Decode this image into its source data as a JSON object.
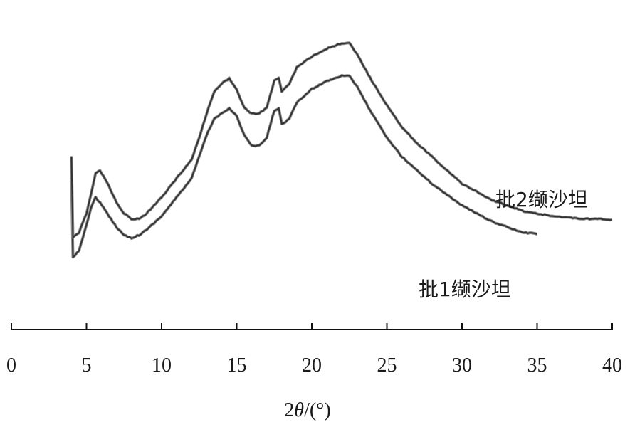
{
  "chart_data": {
    "type": "line",
    "title": "",
    "xlabel_parts": {
      "prefix": "2",
      "symbol": "θ",
      "suffix": "/(°)"
    },
    "ylabel": "",
    "xlim": [
      0,
      40
    ],
    "xticks": [
      0,
      5,
      10,
      15,
      20,
      25,
      30,
      35,
      40
    ],
    "y_axis_shown": false,
    "y_units": "relative intensity (unlabeled)",
    "ylim": [
      0,
      100
    ],
    "grid": false,
    "legend": "none (series labelled directly on curves)",
    "series": [
      {
        "name": "批1缬沙坦",
        "color": "#333333",
        "points": [
          [
            4.0,
            38
          ],
          [
            4.1,
            9
          ],
          [
            4.5,
            11
          ],
          [
            5.0,
            21
          ],
          [
            5.3,
            27
          ],
          [
            5.6,
            31
          ],
          [
            5.9,
            29
          ],
          [
            6.5,
            24
          ],
          [
            7.0,
            20
          ],
          [
            7.5,
            17
          ],
          [
            8.0,
            16
          ],
          [
            8.5,
            17
          ],
          [
            9.0,
            19
          ],
          [
            10.0,
            24
          ],
          [
            11.0,
            31
          ],
          [
            12.0,
            38
          ],
          [
            12.5,
            46
          ],
          [
            13.0,
            54
          ],
          [
            13.5,
            60
          ],
          [
            14.0,
            62
          ],
          [
            14.5,
            64
          ],
          [
            15.0,
            61
          ],
          [
            15.5,
            54
          ],
          [
            16.0,
            50
          ],
          [
            16.5,
            50
          ],
          [
            17.0,
            53
          ],
          [
            17.5,
            63
          ],
          [
            17.8,
            64
          ],
          [
            18.0,
            58
          ],
          [
            18.5,
            60
          ],
          [
            19.0,
            66
          ],
          [
            20.0,
            71
          ],
          [
            21.0,
            74
          ],
          [
            22.0,
            76
          ],
          [
            22.5,
            76
          ],
          [
            23.0,
            72
          ],
          [
            24.0,
            62
          ],
          [
            25.0,
            53
          ],
          [
            26.0,
            46
          ],
          [
            27.0,
            41
          ],
          [
            28.0,
            36
          ],
          [
            29.0,
            32
          ],
          [
            30.0,
            28
          ],
          [
            31.0,
            25
          ],
          [
            32.0,
            22
          ],
          [
            33.0,
            20
          ],
          [
            34.0,
            18
          ],
          [
            35.0,
            17.5
          ]
        ]
      },
      {
        "name": "批2缬沙坦",
        "color": "#333333",
        "points": [
          [
            4.0,
            46
          ],
          [
            4.1,
            16
          ],
          [
            4.5,
            18
          ],
          [
            5.0,
            25
          ],
          [
            5.3,
            32
          ],
          [
            5.6,
            40
          ],
          [
            5.9,
            41
          ],
          [
            6.5,
            35
          ],
          [
            7.0,
            29
          ],
          [
            7.5,
            25
          ],
          [
            8.0,
            23
          ],
          [
            8.5,
            23
          ],
          [
            9.0,
            25
          ],
          [
            10.0,
            31
          ],
          [
            11.0,
            38
          ],
          [
            12.0,
            45
          ],
          [
            12.5,
            53
          ],
          [
            13.0,
            62
          ],
          [
            13.5,
            70
          ],
          [
            14.0,
            73
          ],
          [
            14.5,
            75
          ],
          [
            15.0,
            71
          ],
          [
            15.5,
            64
          ],
          [
            16.0,
            62
          ],
          [
            16.5,
            62
          ],
          [
            17.0,
            64
          ],
          [
            17.5,
            74
          ],
          [
            17.8,
            75
          ],
          [
            18.0,
            70
          ],
          [
            18.5,
            73
          ],
          [
            19.0,
            79
          ],
          [
            20.0,
            83
          ],
          [
            21.0,
            86
          ],
          [
            22.0,
            88
          ],
          [
            22.5,
            88
          ],
          [
            23.0,
            84
          ],
          [
            24.0,
            74
          ],
          [
            25.0,
            65
          ],
          [
            26.0,
            57
          ],
          [
            27.0,
            51
          ],
          [
            28.0,
            46
          ],
          [
            29.0,
            41
          ],
          [
            30.0,
            36
          ],
          [
            31.0,
            33
          ],
          [
            32.0,
            30
          ],
          [
            33.0,
            28
          ],
          [
            34.0,
            26
          ],
          [
            35.0,
            25
          ],
          [
            36.0,
            24
          ],
          [
            37.0,
            23.5
          ],
          [
            38.0,
            23
          ],
          [
            39.0,
            23
          ],
          [
            40.0,
            22.5
          ]
        ]
      }
    ]
  }
}
